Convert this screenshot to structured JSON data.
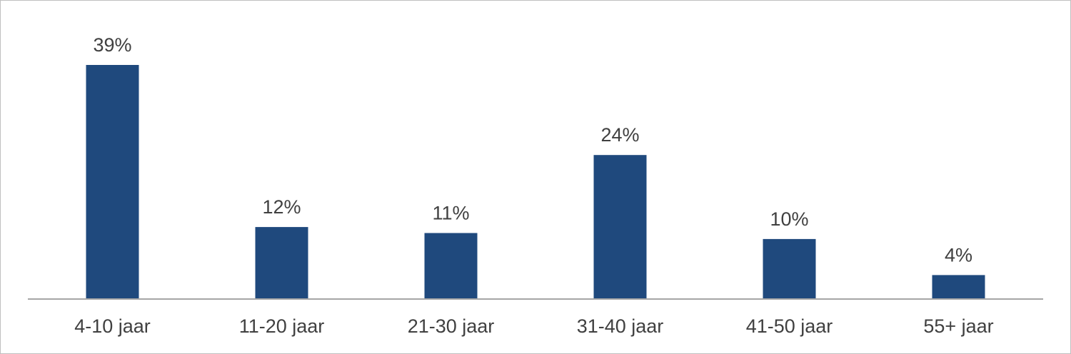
{
  "chart_data": {
    "type": "bar",
    "categories": [
      "4-10 jaar",
      "11-20 jaar",
      "21-30 jaar",
      "31-40 jaar",
      "41-50 jaar",
      "55+ jaar"
    ],
    "values": [
      39,
      12,
      11,
      24,
      10,
      4
    ],
    "data_labels": [
      "39%",
      "12%",
      "11%",
      "24%",
      "10%",
      "4%"
    ],
    "title": "",
    "xlabel": "",
    "ylabel": "",
    "ylim": [
      0,
      40
    ],
    "grid": false,
    "legend": "none",
    "colors": {
      "bar": "#1f497d",
      "axis": "#a6a6a6",
      "text": "#404040"
    }
  }
}
